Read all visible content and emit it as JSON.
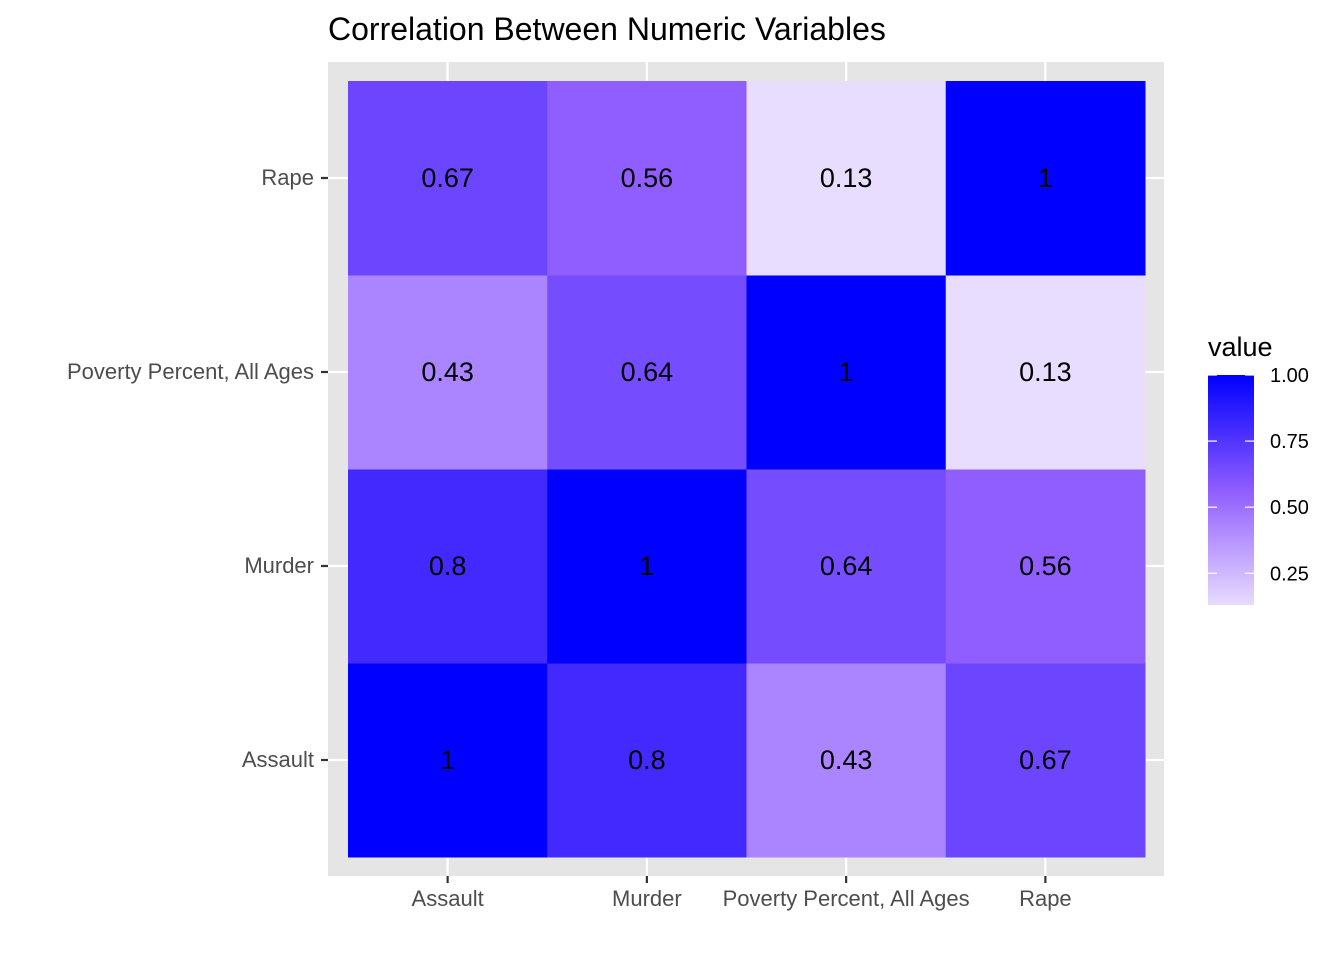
{
  "chart_data": {
    "type": "heatmap",
    "title": "Correlation Between Numeric Variables",
    "xlabel": "",
    "ylabel": "",
    "x_categories": [
      "Assault",
      "Murder",
      "Poverty Percent, All Ages",
      "Rape"
    ],
    "y_categories": [
      "Assault",
      "Murder",
      "Poverty Percent, All Ages",
      "Rape"
    ],
    "cells": [
      {
        "x": "Assault",
        "y": "Assault",
        "value": 1.0,
        "label": "1"
      },
      {
        "x": "Murder",
        "y": "Assault",
        "value": 0.8,
        "label": "0.8"
      },
      {
        "x": "Poverty Percent, All Ages",
        "y": "Assault",
        "value": 0.43,
        "label": "0.43"
      },
      {
        "x": "Rape",
        "y": "Assault",
        "value": 0.67,
        "label": "0.67"
      },
      {
        "x": "Assault",
        "y": "Murder",
        "value": 0.8,
        "label": "0.8"
      },
      {
        "x": "Murder",
        "y": "Murder",
        "value": 1.0,
        "label": "1"
      },
      {
        "x": "Poverty Percent, All Ages",
        "y": "Murder",
        "value": 0.64,
        "label": "0.64"
      },
      {
        "x": "Rape",
        "y": "Murder",
        "value": 0.56,
        "label": "0.56"
      },
      {
        "x": "Assault",
        "y": "Poverty Percent, All Ages",
        "value": 0.43,
        "label": "0.43"
      },
      {
        "x": "Murder",
        "y": "Poverty Percent, All Ages",
        "value": 0.64,
        "label": "0.64"
      },
      {
        "x": "Poverty Percent, All Ages",
        "y": "Poverty Percent, All Ages",
        "value": 1.0,
        "label": "1"
      },
      {
        "x": "Rape",
        "y": "Poverty Percent, All Ages",
        "value": 0.13,
        "label": "0.13"
      },
      {
        "x": "Assault",
        "y": "Rape",
        "value": 0.67,
        "label": "0.67"
      },
      {
        "x": "Murder",
        "y": "Rape",
        "value": 0.56,
        "label": "0.56"
      },
      {
        "x": "Poverty Percent, All Ages",
        "y": "Rape",
        "value": 0.13,
        "label": "0.13"
      },
      {
        "x": "Rape",
        "y": "Rape",
        "value": 1.0,
        "label": "1"
      }
    ],
    "legend": {
      "title": "value",
      "position": "right",
      "ticks": [
        1.0,
        0.75,
        0.5,
        0.25
      ],
      "tick_labels": [
        "1.00",
        "0.75",
        "0.50",
        "0.25"
      ],
      "range": [
        0.13,
        1.0
      ]
    },
    "colors": {
      "low": "#e8dcff",
      "mid": "#8f5cff",
      "high": "#0000ff",
      "panel_background": "#e5e5e5",
      "grid": "#ffffff"
    },
    "grid": true
  }
}
